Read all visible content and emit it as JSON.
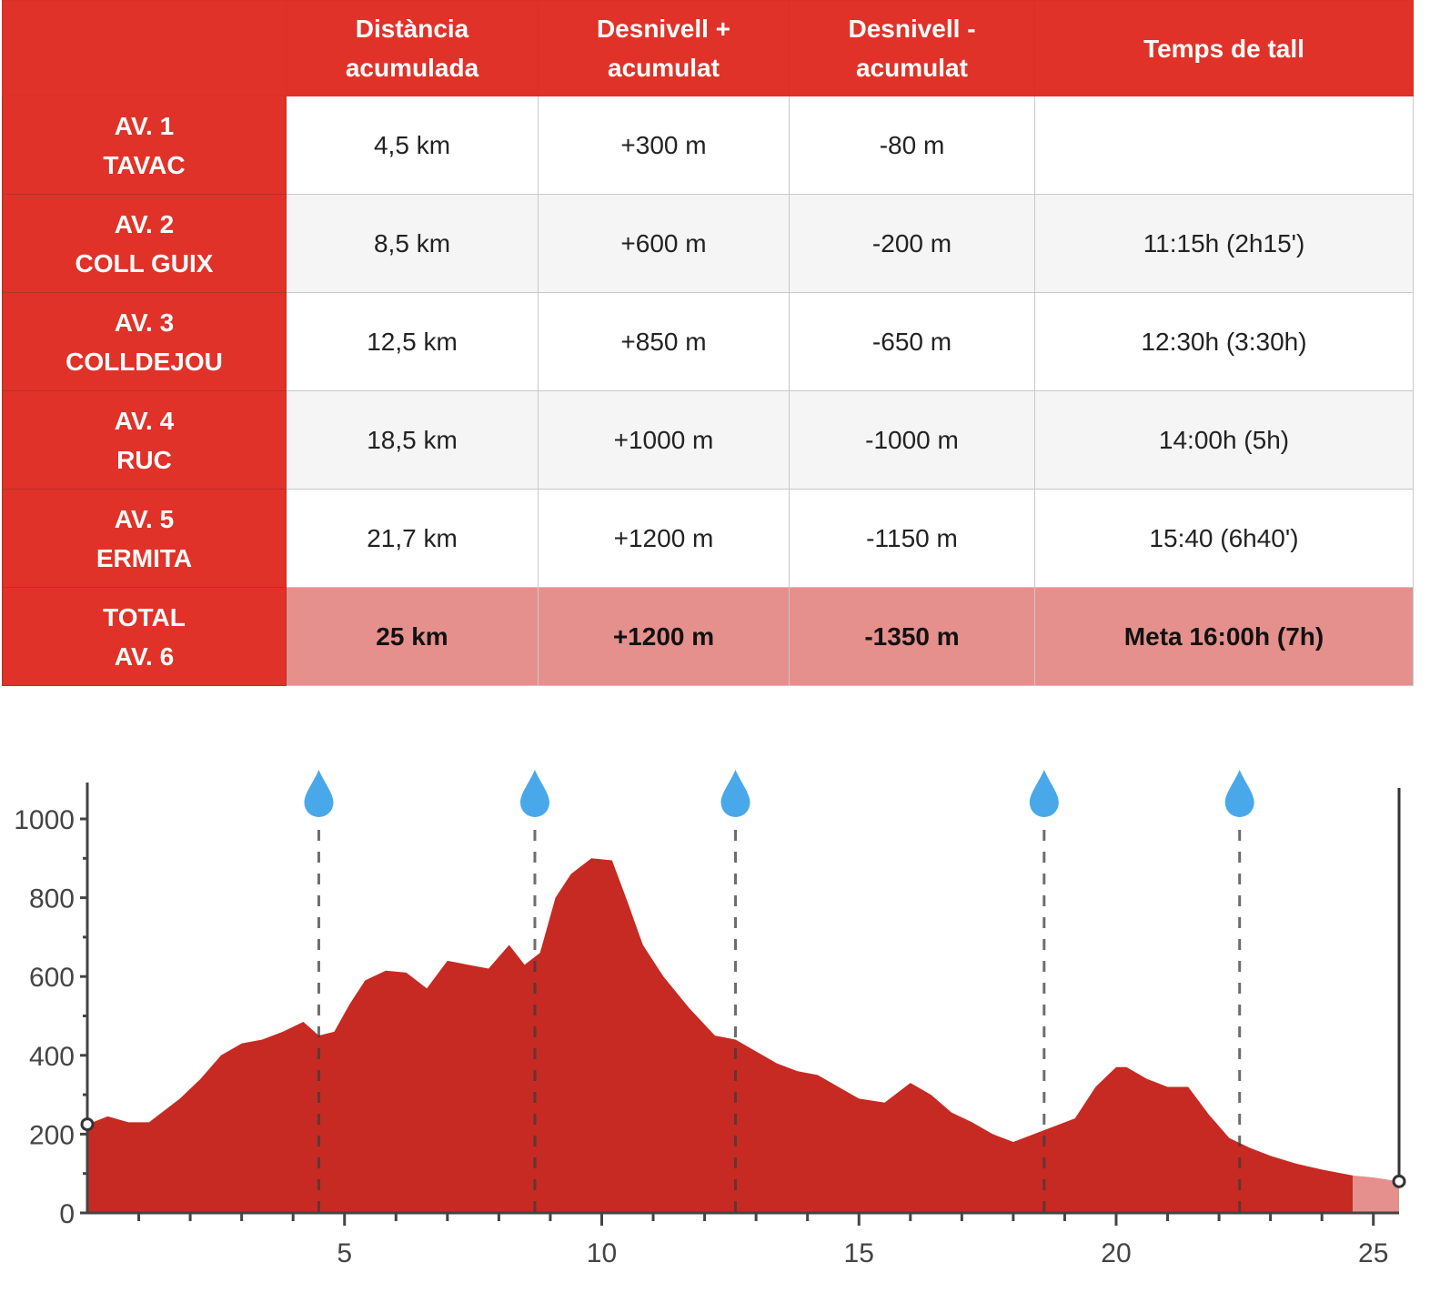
{
  "table": {
    "headers": [
      "",
      "Distància acumulada",
      "Desnivell + acumulat",
      "Desnivell - acumulat",
      "Temps de tall"
    ],
    "header_lines": [
      [],
      [
        "Distància",
        "acumulada"
      ],
      [
        "Desnivell +",
        "acumulat"
      ],
      [
        "Desnivell -",
        "acumulat"
      ],
      [
        "Temps de tall"
      ]
    ],
    "rows": [
      {
        "label": [
          "AV. 1",
          "TAVAC"
        ],
        "distance": "4,5 km",
        "gain": "+300 m",
        "loss": "-80 m",
        "cutoff": ""
      },
      {
        "label": [
          "AV. 2",
          "COLL GUIX"
        ],
        "distance": "8,5 km",
        "gain": "+600 m",
        "loss": "-200 m",
        "cutoff": "11:15h (2h15')"
      },
      {
        "label": [
          "AV. 3",
          "COLLDEJOU"
        ],
        "distance": "12,5 km",
        "gain": "+850 m",
        "loss": "-650 m",
        "cutoff": "12:30h (3:30h)"
      },
      {
        "label": [
          "AV. 4",
          "RUC"
        ],
        "distance": "18,5 km",
        "gain": "+1000 m",
        "loss": "-1000 m",
        "cutoff": "14:00h (5h)"
      },
      {
        "label": [
          "AV. 5",
          "ERMITA"
        ],
        "distance": "21,7 km",
        "gain": "+1200 m",
        "loss": "-1150 m",
        "cutoff": "15:40 (6h40')"
      },
      {
        "label": [
          "TOTAL",
          "AV. 6"
        ],
        "distance": "25 km",
        "gain": "+1200 m",
        "loss": "-1350 m",
        "cutoff": "Meta 16:00h (7h)"
      }
    ],
    "colors": {
      "header_bg": "#e03228",
      "total_bg": "#e5908c",
      "alt_bg": "#f5f5f5"
    }
  },
  "chart_data": {
    "type": "area",
    "title": "",
    "xlabel": "",
    "ylabel": "",
    "xlim": [
      0,
      25.5
    ],
    "ylim": [
      0,
      1000
    ],
    "x_ticks": [
      5,
      10,
      15,
      20,
      25
    ],
    "y_ticks": [
      0,
      200,
      400,
      600,
      800,
      1000
    ],
    "grid": false,
    "fill_color": "#c62a22",
    "finish_fill_color": "#e5908c",
    "aid_station_color": "#49a8ea",
    "aid_stations_km": [
      4.5,
      8.7,
      12.6,
      18.6,
      22.4
    ],
    "profile": {
      "x": [
        0,
        0.4,
        0.8,
        1.2,
        1.5,
        1.8,
        2.2,
        2.6,
        3.0,
        3.4,
        3.8,
        4.2,
        4.5,
        4.8,
        5.1,
        5.4,
        5.8,
        6.2,
        6.6,
        7.0,
        7.4,
        7.8,
        8.2,
        8.5,
        8.8,
        9.1,
        9.4,
        9.8,
        10.2,
        10.5,
        10.8,
        11.2,
        11.7,
        12.2,
        12.6,
        13.0,
        13.4,
        13.8,
        14.2,
        14.6,
        15.0,
        15.5,
        16.0,
        16.4,
        16.8,
        17.2,
        17.6,
        18.0,
        18.4,
        18.8,
        19.2,
        19.6,
        20.0,
        20.2,
        20.6,
        21.0,
        21.4,
        21.8,
        22.2,
        22.6,
        23.0,
        23.5,
        24.0,
        24.6,
        25.0,
        25.5
      ],
      "y": [
        225,
        245,
        230,
        230,
        260,
        290,
        340,
        400,
        430,
        440,
        460,
        485,
        450,
        460,
        530,
        590,
        615,
        610,
        570,
        640,
        630,
        620,
        680,
        630,
        660,
        800,
        860,
        900,
        895,
        790,
        680,
        600,
        520,
        450,
        440,
        410,
        380,
        360,
        350,
        320,
        290,
        280,
        330,
        300,
        255,
        230,
        200,
        180,
        200,
        220,
        240,
        320,
        370,
        370,
        340,
        320,
        320,
        250,
        190,
        165,
        145,
        125,
        110,
        95,
        90,
        80
      ]
    },
    "finish_segment_start_km": 24.6
  }
}
